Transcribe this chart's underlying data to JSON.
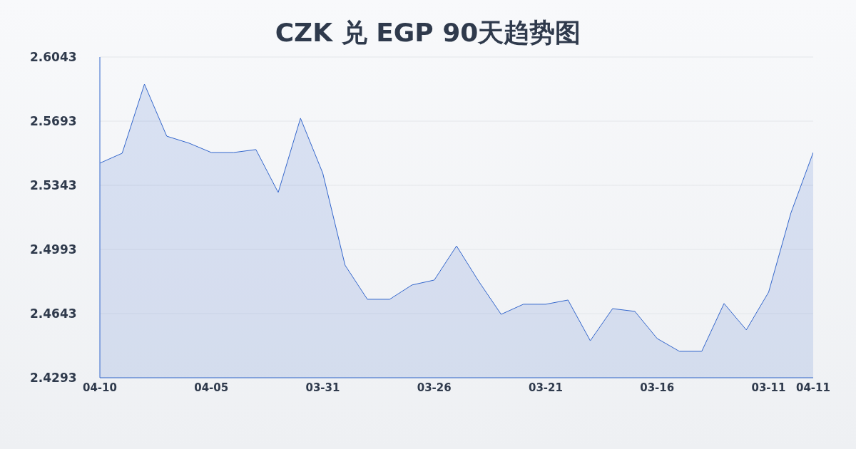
{
  "chart_data": {
    "type": "area",
    "title": "CZK 兑 EGP 90天趋势图",
    "categories": [
      "04-10",
      null,
      null,
      null,
      null,
      "04-05",
      null,
      null,
      null,
      null,
      "03-31",
      null,
      null,
      null,
      null,
      "03-26",
      null,
      null,
      null,
      null,
      "03-21",
      null,
      null,
      null,
      null,
      "03-16",
      null,
      null,
      null,
      null,
      "03-11",
      null,
      "04-11"
    ],
    "series": [
      {
        "color": "#3366cc",
        "values": [
          2.5464,
          2.5518,
          2.5895,
          2.5611,
          2.5573,
          2.5522,
          2.5522,
          2.5538,
          2.5304,
          2.5709,
          2.5409,
          2.4907,
          2.4721,
          2.4721,
          2.4799,
          2.4826,
          2.5012,
          2.4818,
          2.4639,
          2.4694,
          2.4694,
          2.4717,
          2.4495,
          2.467,
          2.4655,
          2.4507,
          2.4437,
          2.4437,
          2.4698,
          2.4554,
          2.476,
          2.5192,
          2.5522
        ]
      }
    ],
    "ylim": [
      2.4293,
      2.6043
    ],
    "yticks": [
      2.4293,
      2.4643,
      2.4993,
      2.5343,
      2.5693,
      2.6043
    ],
    "grid": "y"
  }
}
